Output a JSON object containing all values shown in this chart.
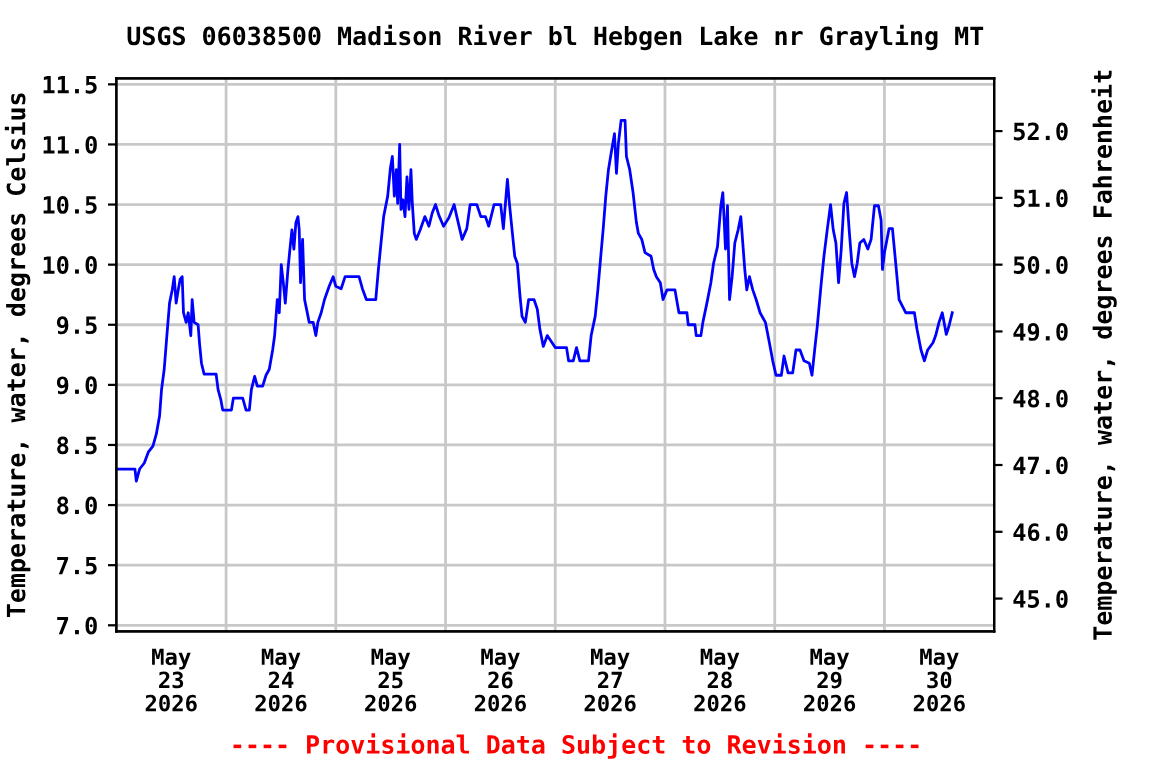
{
  "chart_data": {
    "type": "line",
    "title": "USGS 06038500 Madison River bl Hebgen Lake nr Grayling MT",
    "ylabel": "Temperature, water, degrees Celsius",
    "y2label": "Temperature, water, degrees Fahrenheit",
    "annotations": [
      "---- Provisional Data Subject to Revision ----"
    ],
    "grid": true,
    "legend": false,
    "marker": "none",
    "line_style": "solid",
    "xlim": [
      "2026-05-23",
      "2026-05-31"
    ],
    "xticks": [
      {
        "value": "2026-05-23T12:00",
        "label": "May\n23\n2026"
      },
      {
        "value": "2026-05-24",
        "label": null
      },
      {
        "value": "2026-05-24T12:00",
        "label": "May\n24\n2026"
      },
      {
        "value": "2026-05-25",
        "label": null
      },
      {
        "value": "2026-05-25T12:00",
        "label": "May\n25\n2026"
      },
      {
        "value": "2026-05-26",
        "label": null
      },
      {
        "value": "2026-05-26T12:00",
        "label": "May\n26\n2026"
      },
      {
        "value": "2026-05-27",
        "label": null
      },
      {
        "value": "2026-05-27T12:00",
        "label": "May\n27\n2026"
      },
      {
        "value": "2026-05-28",
        "label": null
      },
      {
        "value": "2026-05-28T12:00",
        "label": "May\n28\n2026"
      },
      {
        "value": "2026-05-29",
        "label": null
      },
      {
        "value": "2026-05-29T12:00",
        "label": "May\n29\n2026"
      },
      {
        "value": "2026-05-30",
        "label": null
      },
      {
        "value": "2026-05-30T12:00",
        "label": "May\n30\n2026"
      }
    ],
    "ylim": [
      6.95,
      11.55
    ],
    "yticks": [
      {
        "value": 7,
        "label": "7.0"
      },
      {
        "value": 7.5,
        "label": "7.5"
      },
      {
        "value": 8,
        "label": "8.0"
      },
      {
        "value": 8.5,
        "label": "8.5"
      },
      {
        "value": 9,
        "label": "9.0"
      },
      {
        "value": 9.5,
        "label": "9.5"
      },
      {
        "value": 10,
        "label": "10.0"
      },
      {
        "value": 10.5,
        "label": "10.5"
      },
      {
        "value": 11,
        "label": "11.0"
      },
      {
        "value": 11.5,
        "label": "11.5"
      }
    ],
    "y2lim": [
      44.51,
      52.79
    ],
    "y2ticks": [
      {
        "value": 45,
        "label": "45.0"
      },
      {
        "value": 46,
        "label": "46.0"
      },
      {
        "value": 47,
        "label": "47.0"
      },
      {
        "value": 48,
        "label": "48.0"
      },
      {
        "value": 49,
        "label": "49.0"
      },
      {
        "value": 50,
        "label": "50.0"
      },
      {
        "value": 51,
        "label": "51.0"
      },
      {
        "value": 52,
        "label": "52.0"
      }
    ],
    "series": [
      {
        "color": "#0000ff",
        "x": [
          "2026-05-23T00:00",
          "2026-05-23T04:04",
          "2026-05-23T04:22",
          "2026-05-23T05:05",
          "2026-05-23T06:07",
          "2026-05-23T06:59",
          "2026-05-23T08:00",
          "2026-05-23T08:44",
          "2026-05-23T09:27",
          "2026-05-23T09:53",
          "2026-05-23T10:28",
          "2026-05-23T11:03",
          "2026-05-23T11:38",
          "2026-05-23T12:13",
          "2026-05-23T12:39",
          "2026-05-23T13:05",
          "2026-05-23T13:32",
          "2026-05-23T13:58",
          "2026-05-23T14:24",
          "2026-05-23T14:41",
          "2026-05-23T15:16",
          "2026-05-23T15:43",
          "2026-05-23T16:17",
          "2026-05-23T16:35",
          "2026-05-23T17:01",
          "2026-05-23T17:53",
          "2026-05-23T18:11",
          "2026-05-23T18:37",
          "2026-05-23T19:12",
          "2026-05-23T21:49",
          "2026-05-23T22:15",
          "2026-05-23T22:50",
          "2026-05-23T23:16",
          "2026-05-24T01:10",
          "2026-05-24T01:36",
          "2026-05-24T03:38",
          "2026-05-24T04:22",
          "2026-05-24T05:05",
          "2026-05-24T05:32",
          "2026-05-24T06:15",
          "2026-05-24T06:50",
          "2026-05-24T08:00",
          "2026-05-24T08:44",
          "2026-05-24T09:27",
          "2026-05-24T10:11",
          "2026-05-24T10:37",
          "2026-05-24T11:12",
          "2026-05-24T11:38",
          "2026-05-24T12:04",
          "2026-05-24T12:31",
          "2026-05-24T12:57",
          "2026-05-24T13:32",
          "2026-05-24T13:58",
          "2026-05-24T14:24",
          "2026-05-24T14:50",
          "2026-05-24T15:16",
          "2026-05-24T15:43",
          "2026-05-24T16:00",
          "2026-05-24T16:17",
          "2026-05-24T16:44",
          "2026-05-24T17:10",
          "2026-05-24T17:36",
          "2026-05-24T18:11",
          "2026-05-24T19:03",
          "2026-05-24T19:38",
          "2026-05-24T20:04",
          "2026-05-24T20:48",
          "2026-05-24T21:32",
          "2026-05-24T22:33",
          "2026-05-24T23:25",
          "2026-05-25T00:00",
          "2026-05-25T01:10",
          "2026-05-25T02:02",
          "2026-05-25T05:05",
          "2026-05-25T05:49",
          "2026-05-25T06:41",
          "2026-05-25T08:44",
          "2026-05-25T09:19",
          "2026-05-25T09:53",
          "2026-05-25T10:28",
          "2026-05-25T11:21",
          "2026-05-25T11:56",
          "2026-05-25T12:22",
          "2026-05-25T12:48",
          "2026-05-25T13:14",
          "2026-05-25T13:32",
          "2026-05-25T13:58",
          "2026-05-25T14:15",
          "2026-05-25T14:41",
          "2026-05-25T15:08",
          "2026-05-25T15:34",
          "2026-05-25T16:00",
          "2026-05-25T16:26",
          "2026-05-25T16:44",
          "2026-05-25T17:10",
          "2026-05-25T17:36",
          "2026-05-25T18:28",
          "2026-05-25T19:29",
          "2026-05-25T20:22",
          "2026-05-25T21:05",
          "2026-05-25T21:49",
          "2026-05-25T22:33",
          "2026-05-25T23:34",
          "2026-05-26T00:44",
          "2026-05-26T01:53",
          "2026-05-26T02:28",
          "2026-05-26T03:38",
          "2026-05-26T04:39",
          "2026-05-26T05:23",
          "2026-05-26T06:50",
          "2026-05-26T07:43",
          "2026-05-26T08:44",
          "2026-05-26T09:27",
          "2026-05-26T10:37",
          "2026-05-26T12:04",
          "2026-05-26T12:39",
          "2026-05-26T13:32",
          "2026-05-26T13:58",
          "2026-05-26T14:33",
          "2026-05-26T15:08",
          "2026-05-26T15:43",
          "2026-05-26T16:17",
          "2026-05-26T16:44",
          "2026-05-26T17:27",
          "2026-05-26T18:11",
          "2026-05-26T19:21",
          "2026-05-26T20:04",
          "2026-05-26T20:39",
          "2026-05-26T21:23",
          "2026-05-26T22:15",
          "2026-05-27T00:00",
          "2026-05-27T02:28",
          "2026-05-27T02:55",
          "2026-05-27T03:56",
          "2026-05-27T04:39",
          "2026-05-27T05:23",
          "2026-05-27T07:16",
          "2026-05-27T07:51",
          "2026-05-27T08:44",
          "2026-05-27T09:19",
          "2026-05-27T09:53",
          "2026-05-27T10:28",
          "2026-05-27T11:03",
          "2026-05-27T11:38",
          "2026-05-27T12:22",
          "2026-05-27T12:57",
          "2026-05-27T13:23",
          "2026-05-27T13:49",
          "2026-05-27T14:24",
          "2026-05-27T15:16",
          "2026-05-27T15:34",
          "2026-05-27T16:17",
          "2026-05-27T17:01",
          "2026-05-27T17:45",
          "2026-05-27T18:11",
          "2026-05-27T18:55",
          "2026-05-27T19:38",
          "2026-05-27T20:57",
          "2026-05-27T21:32",
          "2026-05-27T22:07",
          "2026-05-27T22:59",
          "2026-05-27T23:34",
          "2026-05-28T00:26",
          "2026-05-28T02:11",
          "2026-05-28T03:03",
          "2026-05-28T04:48",
          "2026-05-28T05:05",
          "2026-05-28T06:33",
          "2026-05-28T06:50",
          "2026-05-28T07:51",
          "2026-05-28T08:17",
          "2026-05-28T09:10",
          "2026-05-28T10:02",
          "2026-05-28T10:37",
          "2026-05-28T11:29",
          "2026-05-28T12:13",
          "2026-05-28T12:39",
          "2026-05-28T13:14",
          "2026-05-28T13:40",
          "2026-05-28T14:07",
          "2026-05-28T14:41",
          "2026-05-28T15:16",
          "2026-05-28T16:00",
          "2026-05-28T16:35",
          "2026-05-28T17:01",
          "2026-05-28T17:27",
          "2026-05-28T17:53",
          "2026-05-28T18:28",
          "2026-05-28T19:12",
          "2026-05-28T19:56",
          "2026-05-28T20:48",
          "2026-05-28T21:58",
          "2026-05-28T22:50",
          "2026-05-28T23:34",
          "2026-05-29T00:17",
          "2026-05-29T01:27",
          "2026-05-29T02:02",
          "2026-05-29T02:55",
          "2026-05-29T03:56",
          "2026-05-29T04:39",
          "2026-05-29T05:32",
          "2026-05-29T06:24",
          "2026-05-29T07:34",
          "2026-05-29T08:09",
          "2026-05-29T08:44",
          "2026-05-29T09:19",
          "2026-05-29T10:11",
          "2026-05-29T10:46",
          "2026-05-29T11:29",
          "2026-05-29T12:13",
          "2026-05-29T12:48",
          "2026-05-29T13:23",
          "2026-05-29T13:58",
          "2026-05-29T14:33",
          "2026-05-29T15:08",
          "2026-05-29T15:43",
          "2026-05-29T16:17",
          "2026-05-29T16:52",
          "2026-05-29T17:27",
          "2026-05-29T18:02",
          "2026-05-29T18:37",
          "2026-05-29T19:29",
          "2026-05-29T20:22",
          "2026-05-29T21:05",
          "2026-05-29T21:49",
          "2026-05-29T22:41",
          "2026-05-29T23:16",
          "2026-05-29T23:34",
          "2026-05-30T00:00",
          "2026-05-30T01:01",
          "2026-05-30T01:45",
          "2026-05-30T02:28",
          "2026-05-30T03:12",
          "2026-05-30T04:39",
          "2026-05-30T06:33",
          "2026-05-30T07:08",
          "2026-05-30T08:00",
          "2026-05-30T08:44",
          "2026-05-30T09:27",
          "2026-05-30T10:37",
          "2026-05-30T11:12",
          "2026-05-30T11:56",
          "2026-05-30T12:39",
          "2026-05-30T13:32",
          "2026-05-30T14:07",
          "2026-05-30T14:50"
        ],
        "values": [
          8.3,
          8.3,
          8.2,
          8.3,
          8.35,
          8.44,
          8.49,
          8.59,
          8.74,
          8.96,
          9.13,
          9.41,
          9.68,
          9.79,
          9.9,
          9.68,
          9.79,
          9.88,
          9.9,
          9.6,
          9.52,
          9.6,
          9.41,
          9.71,
          9.52,
          9.5,
          9.35,
          9.18,
          9.09,
          9.09,
          8.96,
          8.88,
          8.79,
          8.79,
          8.89,
          8.89,
          8.79,
          8.79,
          8.96,
          9.07,
          8.99,
          8.99,
          9.08,
          9.13,
          9.29,
          9.41,
          9.71,
          9.6,
          10.0,
          9.85,
          9.68,
          9.96,
          10.13,
          10.29,
          10.13,
          10.35,
          10.4,
          10.29,
          9.85,
          10.21,
          9.71,
          9.63,
          9.52,
          9.52,
          9.41,
          9.52,
          9.6,
          9.71,
          9.82,
          9.9,
          9.82,
          9.8,
          9.9,
          9.9,
          9.8,
          9.71,
          9.71,
          9.96,
          10.18,
          10.4,
          10.57,
          10.8,
          10.9,
          10.57,
          10.79,
          10.51,
          11.0,
          10.46,
          10.54,
          10.4,
          10.73,
          10.46,
          10.79,
          10.51,
          10.26,
          10.21,
          10.29,
          10.4,
          10.32,
          10.43,
          10.5,
          10.41,
          10.32,
          10.39,
          10.5,
          10.4,
          10.21,
          10.3,
          10.5,
          10.5,
          10.4,
          10.4,
          10.32,
          10.5,
          10.5,
          10.3,
          10.71,
          10.51,
          10.29,
          10.07,
          10.01,
          9.74,
          9.57,
          9.52,
          9.71,
          9.71,
          9.63,
          9.46,
          9.32,
          9.41,
          9.31,
          9.31,
          9.2,
          9.2,
          9.31,
          9.2,
          9.2,
          9.41,
          9.57,
          9.79,
          10.04,
          10.29,
          10.57,
          10.79,
          10.96,
          11.09,
          10.76,
          11.01,
          11.2,
          11.2,
          10.9,
          10.79,
          10.6,
          10.35,
          10.26,
          10.21,
          10.1,
          10.07,
          9.96,
          9.9,
          9.85,
          9.71,
          9.79,
          9.79,
          9.6,
          9.6,
          9.5,
          9.5,
          9.41,
          9.41,
          9.52,
          9.68,
          9.85,
          10.01,
          10.15,
          10.49,
          10.6,
          10.13,
          10.49,
          9.71,
          9.9,
          10.18,
          10.29,
          10.4,
          10.18,
          9.96,
          9.79,
          9.9,
          9.79,
          9.71,
          9.6,
          9.52,
          9.35,
          9.2,
          9.08,
          9.08,
          9.24,
          9.1,
          9.1,
          9.29,
          9.29,
          9.2,
          9.18,
          9.08,
          9.29,
          9.49,
          9.85,
          10.07,
          10.29,
          10.5,
          10.29,
          10.18,
          9.85,
          10.13,
          10.51,
          10.6,
          10.29,
          10.01,
          9.9,
          10.01,
          10.18,
          10.21,
          10.13,
          10.21,
          10.49,
          10.49,
          10.37,
          9.96,
          10.1,
          10.3,
          10.3,
          10.01,
          9.71,
          9.6,
          9.6,
          9.46,
          9.29,
          9.2,
          9.29,
          9.35,
          9.41,
          9.52,
          9.6,
          9.42,
          9.49,
          9.6
        ]
      }
    ]
  }
}
